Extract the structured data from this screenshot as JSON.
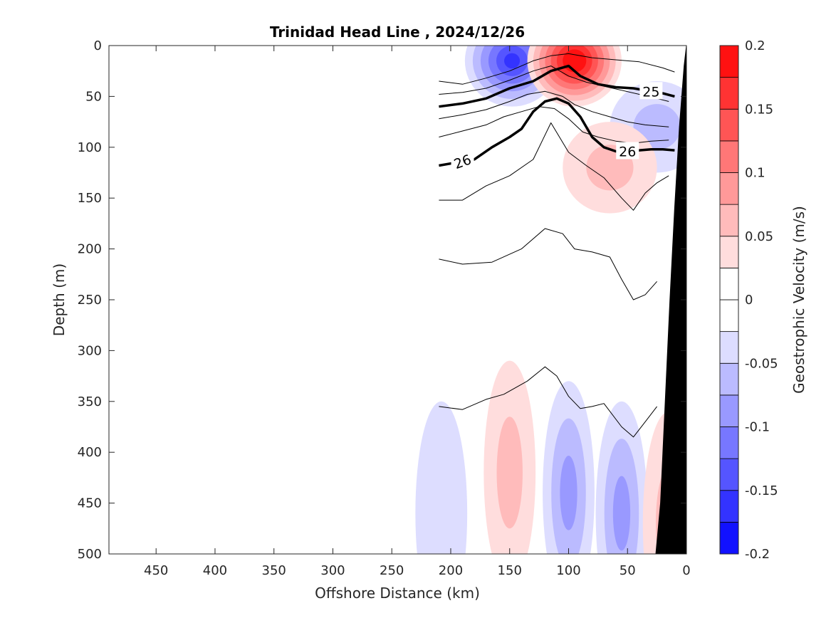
{
  "chart_data": {
    "type": "contour",
    "title": "Trinidad Head Line , 2024/12/26",
    "xlabel": "Offshore Distance (km)",
    "ylabel": "Depth (m)",
    "xlim": [
      490,
      0
    ],
    "ylim": [
      0,
      500
    ],
    "x_reversed": true,
    "y_reversed": true,
    "x_ticks": [
      450,
      400,
      350,
      300,
      250,
      200,
      150,
      100,
      50,
      0
    ],
    "y_ticks": [
      0,
      50,
      100,
      150,
      200,
      250,
      300,
      350,
      400,
      450,
      500
    ],
    "grid": false,
    "colorbar": {
      "label": "Geostrophic Velocity (m/s)",
      "limits": [
        -0.2,
        0.2
      ],
      "step": 0.025,
      "tick_labels": [
        "0.2",
        "0.15",
        "0.1",
        "0.05",
        "0",
        "-0.05",
        "-0.1",
        "-0.15",
        "-0.2"
      ],
      "positive_color": "#ff0000",
      "negative_color": "#0000ff",
      "neutral_color": "#ffffff"
    },
    "velocity_features": [
      {
        "sign": "negative",
        "peak": -0.16,
        "center_x": 148,
        "center_depth": 15
      },
      {
        "sign": "positive",
        "peak": 0.19,
        "center_x": 95,
        "center_depth": 15
      },
      {
        "sign": "negative",
        "peak": -0.05,
        "center_x": 25,
        "center_depth": 80
      },
      {
        "sign": "positive",
        "peak": 0.04,
        "center_x": 65,
        "center_depth": 120
      },
      {
        "sign": "positive",
        "peak": 0.04,
        "center_x": 150,
        "center_depth": 420
      },
      {
        "sign": "negative",
        "peak": -0.07,
        "center_x": 100,
        "center_depth": 440
      },
      {
        "sign": "negative",
        "peak": -0.07,
        "center_x": 55,
        "center_depth": 460
      },
      {
        "sign": "positive",
        "peak": 0.05,
        "center_x": 15,
        "center_depth": 470
      },
      {
        "sign": "negative",
        "peak": -0.03,
        "center_x": 208,
        "center_depth": 460
      }
    ],
    "density_contours": [
      {
        "value": 25,
        "bold": true,
        "label": "25",
        "points": [
          [
            210,
            60
          ],
          [
            190,
            57
          ],
          [
            170,
            52
          ],
          [
            150,
            42
          ],
          [
            130,
            35
          ],
          [
            115,
            25
          ],
          [
            100,
            20
          ],
          [
            90,
            30
          ],
          [
            75,
            38
          ],
          [
            60,
            41
          ],
          [
            45,
            42
          ],
          [
            30,
            45
          ],
          [
            20,
            47
          ],
          [
            10,
            50
          ]
        ]
      },
      {
        "value": 26,
        "bold": true,
        "label": "26",
        "points": [
          [
            210,
            118
          ],
          [
            180,
            112
          ],
          [
            165,
            100
          ],
          [
            150,
            90
          ],
          [
            140,
            82
          ],
          [
            130,
            65
          ],
          [
            120,
            55
          ],
          [
            110,
            52
          ],
          [
            100,
            57
          ],
          [
            90,
            70
          ],
          [
            85,
            80
          ],
          [
            80,
            90
          ],
          [
            70,
            100
          ],
          [
            60,
            104
          ],
          [
            50,
            104
          ],
          [
            40,
            103
          ],
          [
            30,
            102
          ],
          [
            20,
            102
          ],
          [
            10,
            103
          ]
        ]
      },
      {
        "value": null,
        "bold": false,
        "points": [
          [
            210,
            35
          ],
          [
            190,
            38
          ],
          [
            170,
            32
          ],
          [
            150,
            25
          ],
          [
            130,
            15
          ],
          [
            115,
            10
          ],
          [
            100,
            8
          ],
          [
            80,
            12
          ],
          [
            60,
            14
          ],
          [
            40,
            16
          ],
          [
            20,
            22
          ],
          [
            10,
            26
          ]
        ]
      },
      {
        "value": null,
        "bold": false,
        "points": [
          [
            210,
            48
          ],
          [
            190,
            46
          ],
          [
            170,
            42
          ],
          [
            150,
            34
          ],
          [
            130,
            25
          ],
          [
            115,
            20
          ],
          [
            100,
            30
          ],
          [
            85,
            36
          ],
          [
            70,
            40
          ],
          [
            55,
            44
          ],
          [
            40,
            48
          ],
          [
            25,
            52
          ],
          [
            15,
            55
          ]
        ]
      },
      {
        "value": null,
        "bold": false,
        "points": [
          [
            210,
            72
          ],
          [
            190,
            68
          ],
          [
            170,
            63
          ],
          [
            150,
            55
          ],
          [
            135,
            48
          ],
          [
            120,
            45
          ],
          [
            105,
            50
          ],
          [
            95,
            58
          ],
          [
            80,
            65
          ],
          [
            65,
            70
          ],
          [
            50,
            75
          ],
          [
            35,
            78
          ],
          [
            15,
            80
          ]
        ]
      },
      {
        "value": null,
        "bold": false,
        "points": [
          [
            210,
            90
          ],
          [
            190,
            84
          ],
          [
            170,
            78
          ],
          [
            155,
            70
          ],
          [
            140,
            65
          ],
          [
            125,
            60
          ],
          [
            112,
            62
          ],
          [
            100,
            72
          ],
          [
            88,
            85
          ],
          [
            75,
            90
          ],
          [
            60,
            94
          ],
          [
            45,
            96
          ],
          [
            30,
            94
          ],
          [
            15,
            93
          ]
        ]
      },
      {
        "value": null,
        "bold": false,
        "points": [
          [
            210,
            152
          ],
          [
            190,
            152
          ],
          [
            170,
            138
          ],
          [
            150,
            128
          ],
          [
            130,
            112
          ],
          [
            115,
            76
          ],
          [
            100,
            105
          ],
          [
            85,
            118
          ],
          [
            70,
            130
          ],
          [
            55,
            150
          ],
          [
            45,
            162
          ],
          [
            35,
            145
          ],
          [
            25,
            135
          ],
          [
            15,
            128
          ]
        ]
      },
      {
        "value": null,
        "bold": false,
        "points": [
          [
            210,
            210
          ],
          [
            190,
            215
          ],
          [
            165,
            213
          ],
          [
            140,
            200
          ],
          [
            120,
            180
          ],
          [
            105,
            185
          ],
          [
            95,
            200
          ],
          [
            80,
            203
          ],
          [
            65,
            208
          ],
          [
            55,
            230
          ],
          [
            45,
            250
          ],
          [
            35,
            245
          ],
          [
            25,
            232
          ]
        ]
      },
      {
        "value": null,
        "bold": false,
        "points": [
          [
            210,
            355
          ],
          [
            190,
            358
          ],
          [
            170,
            348
          ],
          [
            155,
            343
          ],
          [
            135,
            330
          ],
          [
            120,
            316
          ],
          [
            110,
            325
          ],
          [
            100,
            345
          ],
          [
            90,
            357
          ],
          [
            80,
            355
          ],
          [
            70,
            352
          ],
          [
            55,
            375
          ],
          [
            45,
            385
          ],
          [
            35,
            370
          ],
          [
            25,
            355
          ]
        ]
      }
    ],
    "bathymetry": {
      "color": "#000000",
      "points": [
        [
          0,
          0
        ],
        [
          0,
          500
        ],
        [
          26,
          500
        ],
        [
          22,
          450
        ],
        [
          18,
          350
        ],
        [
          14,
          250
        ],
        [
          10,
          160
        ],
        [
          6,
          80
        ],
        [
          2,
          20
        ]
      ]
    }
  }
}
